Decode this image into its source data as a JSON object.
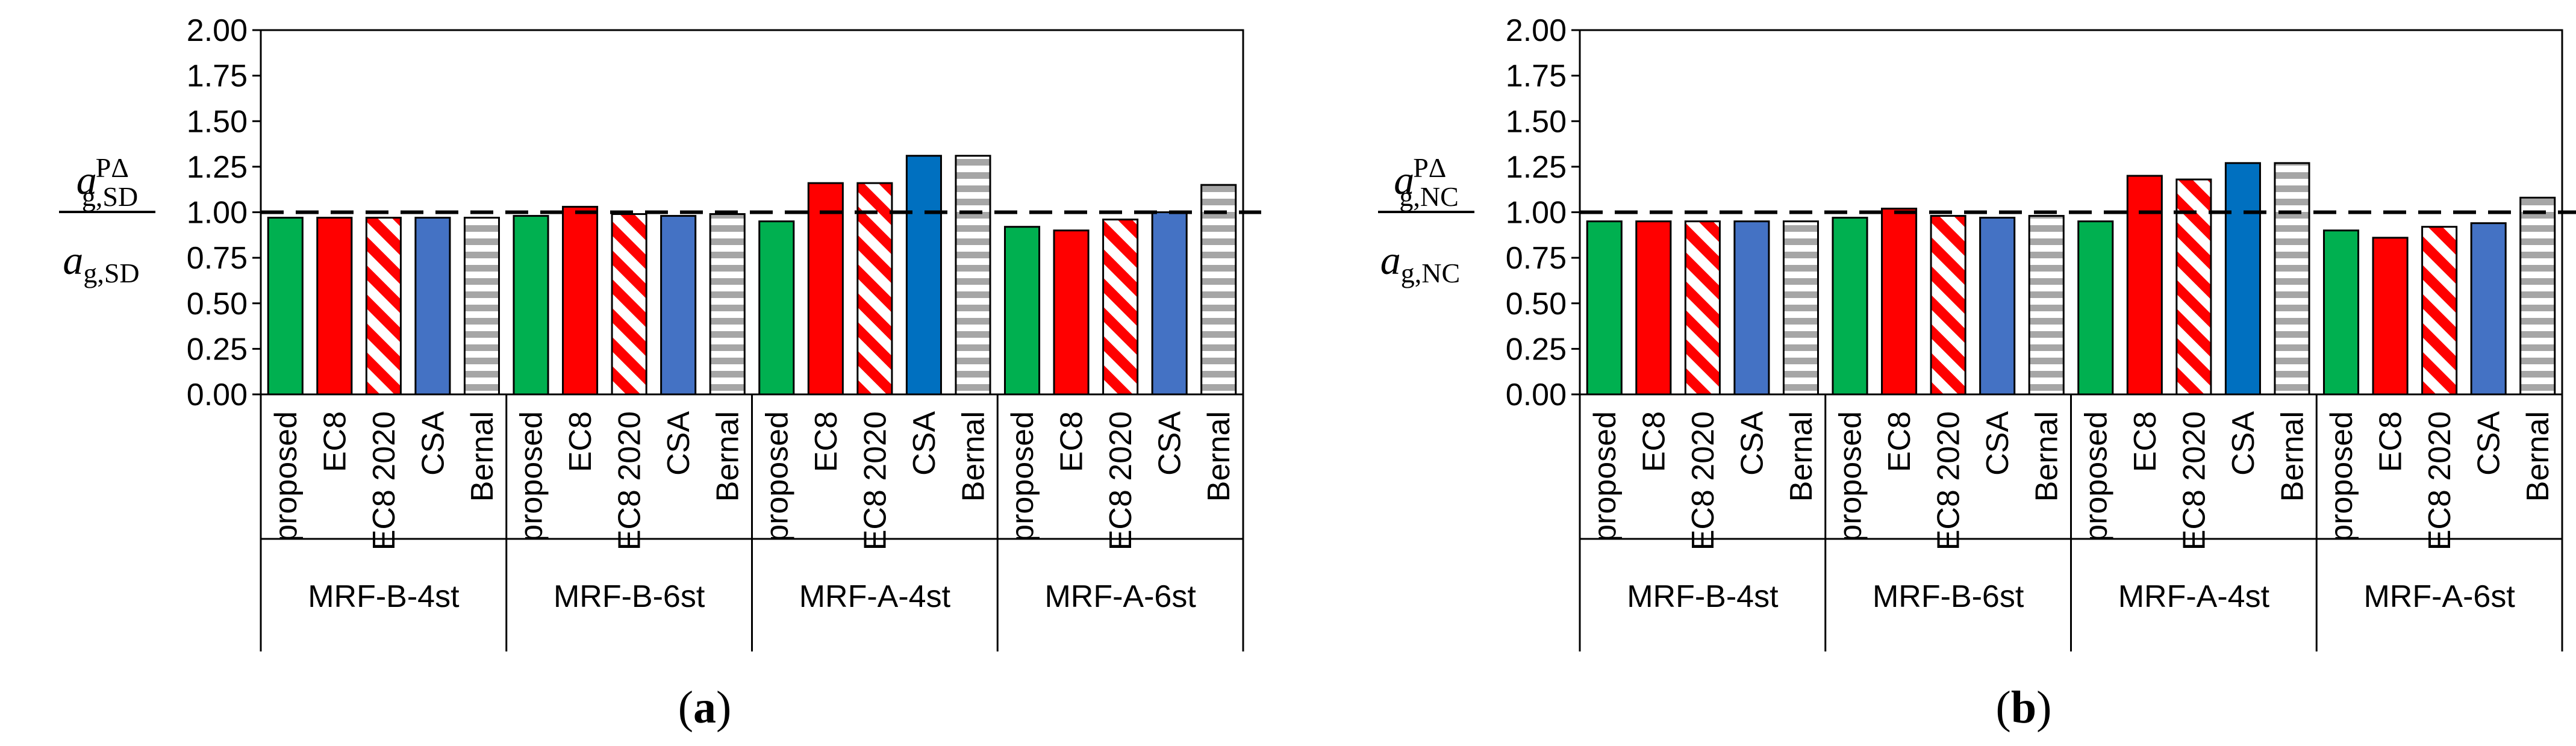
{
  "chart_data": [
    {
      "type": "bar",
      "panel_label": "a",
      "ylabel": {
        "num_base": "a",
        "num_sup": "PΔ",
        "num_sub": "g,SD",
        "den_base": "a",
        "den_sub": "g,SD"
      },
      "ylim": [
        0,
        2
      ],
      "yticks": [
        "0.00",
        "0.25",
        "0.50",
        "0.75",
        "1.00",
        "1.25",
        "1.50",
        "1.75",
        "2.00"
      ],
      "reference_line": 1.0,
      "categories": [
        "proposed",
        "EC8",
        "EC8 2020",
        "CSA",
        "Bernal"
      ],
      "groups": [
        {
          "name": "MRF-B-4st",
          "values": [
            0.97,
            0.97,
            0.97,
            0.97,
            0.97
          ]
        },
        {
          "name": "MRF-B-6st",
          "values": [
            0.98,
            1.03,
            0.99,
            0.98,
            0.99
          ]
        },
        {
          "name": "MRF-A-4st",
          "values": [
            0.95,
            1.16,
            1.16,
            1.31,
            1.31
          ]
        },
        {
          "name": "MRF-A-6st",
          "values": [
            0.92,
            0.9,
            0.96,
            1.0,
            1.15
          ]
        }
      ]
    },
    {
      "type": "bar",
      "panel_label": "b",
      "ylabel": {
        "num_base": "a",
        "num_sup": "PΔ",
        "num_sub": "g,NC",
        "den_base": "a",
        "den_sub": "g,NC"
      },
      "ylim": [
        0,
        2
      ],
      "yticks": [
        "0.00",
        "0.25",
        "0.50",
        "0.75",
        "1.00",
        "1.25",
        "1.50",
        "1.75",
        "2.00"
      ],
      "reference_line": 1.0,
      "categories": [
        "proposed",
        "EC8",
        "EC8 2020",
        "CSA",
        "Bernal"
      ],
      "groups": [
        {
          "name": "MRF-B-4st",
          "values": [
            0.95,
            0.95,
            0.95,
            0.95,
            0.95
          ]
        },
        {
          "name": "MRF-B-6st",
          "values": [
            0.97,
            1.02,
            0.98,
            0.97,
            0.98
          ]
        },
        {
          "name": "MRF-A-4st",
          "values": [
            0.95,
            1.2,
            1.18,
            1.27,
            1.27
          ]
        },
        {
          "name": "MRF-A-6st",
          "values": [
            0.9,
            0.86,
            0.92,
            0.94,
            1.08
          ]
        }
      ]
    }
  ],
  "colors": {
    "proposed": "#00b050",
    "EC8": "#ff0000",
    "EC8 2020": "#ff0000",
    "CSA_default": "#4472c4",
    "CSA_A4": "#0070c0",
    "Bernal": "#a6a6a6"
  }
}
